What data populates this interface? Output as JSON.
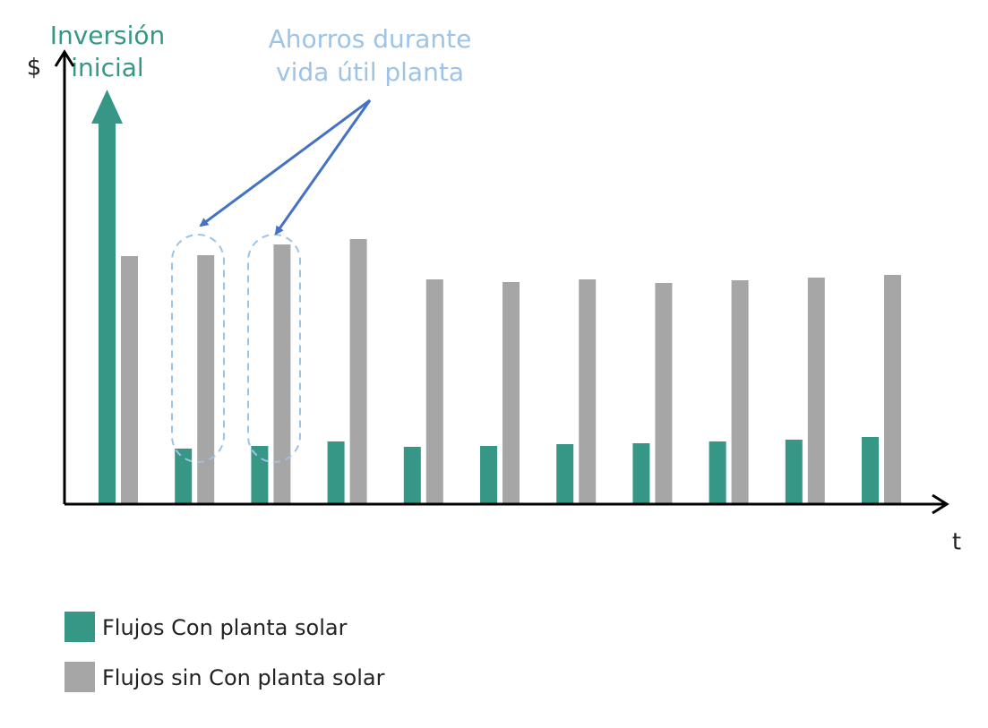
{
  "chart_data": {
    "type": "bar",
    "title_lines": [
      "Inversión",
      "inicial"
    ],
    "annotation_lines": [
      "Ahorros durante",
      "vida útil planta"
    ],
    "ylabel": "$",
    "xlabel": "t",
    "categories": [
      null,
      null,
      null,
      null,
      null,
      null,
      null,
      null,
      null,
      null,
      null
    ],
    "ylim": [
      0,
      100
    ],
    "series": [
      {
        "name": "Flujos Con planta solar",
        "color": "#379787",
        "values": [
          92.6,
          12.4,
          13,
          14,
          12.8,
          13,
          13.4,
          13.6,
          14,
          14.4,
          15
        ]
      },
      {
        "name": "Flujos sin Con planta solar",
        "color": "#a6a6a6",
        "values": [
          55.4,
          55.6,
          58,
          59.2,
          50.2,
          49.6,
          50.2,
          49.4,
          50,
          50.6,
          51.2
        ]
      }
    ]
  }
}
